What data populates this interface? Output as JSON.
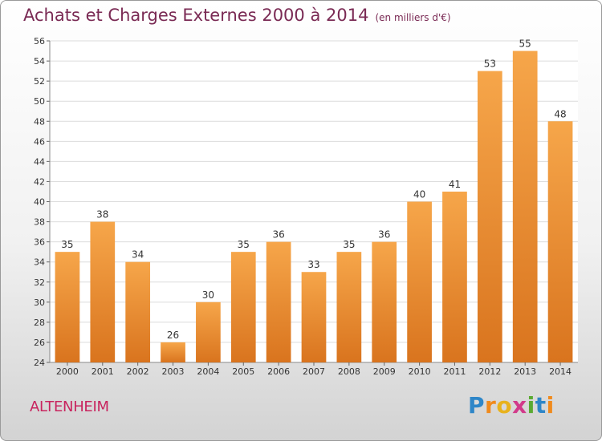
{
  "header": {
    "title": "Achats et Charges Externes 2000 à 2014",
    "unit": "(en milliers d'€)"
  },
  "commune": "ALTENHEIM",
  "logo": [
    "P",
    "r",
    "o",
    "x",
    "i",
    "t",
    "i"
  ],
  "colors": {
    "bar_top": "#f6a64a",
    "bar_bottom": "#d9741e",
    "title": "#7a2a54",
    "commune": "#c8245e"
  },
  "chart_data": {
    "type": "bar",
    "title": "Achats et Charges Externes 2000 à 2014",
    "subtitle": "(en milliers d'€)",
    "categories": [
      "2000",
      "2001",
      "2002",
      "2003",
      "2004",
      "2005",
      "2006",
      "2007",
      "2008",
      "2009",
      "2010",
      "2011",
      "2012",
      "2013",
      "2014"
    ],
    "values": [
      35,
      38,
      34,
      26,
      30,
      35,
      36,
      33,
      35,
      36,
      40,
      41,
      53,
      55,
      48
    ],
    "ylim": [
      24,
      56
    ],
    "yticks": [
      24,
      26,
      28,
      30,
      32,
      34,
      36,
      38,
      40,
      42,
      44,
      46,
      48,
      50,
      52,
      54,
      56
    ],
    "grid": true,
    "data_labels": true
  }
}
